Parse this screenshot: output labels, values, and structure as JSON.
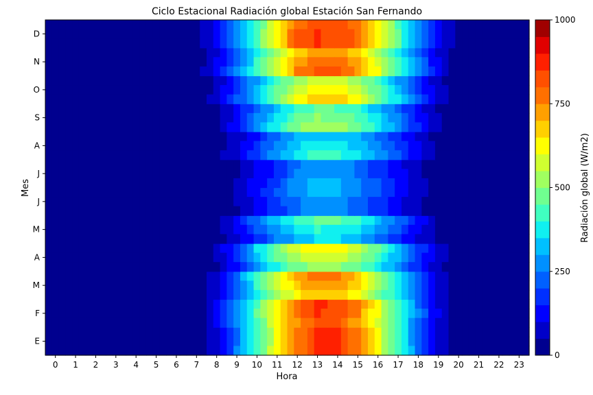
{
  "chart_data": {
    "type": "heatmap",
    "title": "Ciclo Estacional Radiación global Estación San Fernando",
    "xlabel": "Hora",
    "ylabel": "Mes",
    "x": [
      0,
      1,
      2,
      3,
      4,
      5,
      6,
      7,
      8,
      9,
      10,
      11,
      12,
      13,
      14,
      15,
      16,
      17,
      18,
      19,
      20,
      21,
      22,
      23
    ],
    "x_tick_labels": [
      "0",
      "1",
      "2",
      "3",
      "4",
      "5",
      "6",
      "7",
      "8",
      "9",
      "10",
      "11",
      "12",
      "13",
      "14",
      "15",
      "16",
      "17",
      "18",
      "19",
      "20",
      "21",
      "22",
      "23"
    ],
    "y_tick_labels": [
      "E",
      "F",
      "M",
      "A",
      "M",
      "J",
      "J",
      "A",
      "S",
      "O",
      "N",
      "D"
    ],
    "values": [
      [
        0,
        0,
        0,
        0,
        0,
        0,
        0,
        10,
        90,
        240,
        420,
        600,
        760,
        860,
        860,
        760,
        600,
        420,
        240,
        90,
        10,
        0,
        0,
        0
      ],
      [
        0,
        0,
        0,
        0,
        0,
        0,
        0,
        15,
        110,
        270,
        450,
        640,
        780,
        850,
        840,
        750,
        600,
        430,
        250,
        100,
        15,
        0,
        0,
        0
      ],
      [
        0,
        0,
        0,
        0,
        0,
        0,
        0,
        10,
        80,
        230,
        410,
        560,
        680,
        740,
        730,
        650,
        520,
        380,
        220,
        90,
        15,
        0,
        0,
        0
      ],
      [
        0,
        0,
        0,
        0,
        0,
        0,
        0,
        5,
        55,
        170,
        320,
        450,
        540,
        590,
        580,
        520,
        430,
        310,
        180,
        70,
        10,
        0,
        0,
        0
      ],
      [
        0,
        0,
        0,
        0,
        0,
        0,
        0,
        0,
        25,
        100,
        200,
        290,
        360,
        400,
        390,
        350,
        280,
        200,
        110,
        40,
        5,
        0,
        0,
        0
      ],
      [
        0,
        0,
        0,
        0,
        0,
        0,
        0,
        0,
        10,
        50,
        110,
        180,
        240,
        280,
        270,
        230,
        170,
        110,
        50,
        15,
        0,
        0,
        0,
        0
      ],
      [
        0,
        0,
        0,
        0,
        0,
        0,
        0,
        0,
        10,
        45,
        100,
        170,
        250,
        290,
        280,
        240,
        180,
        120,
        60,
        20,
        0,
        0,
        0,
        0
      ],
      [
        0,
        0,
        0,
        0,
        0,
        0,
        0,
        0,
        20,
        80,
        170,
        260,
        340,
        370,
        370,
        330,
        260,
        180,
        100,
        35,
        5,
        0,
        0,
        0
      ],
      [
        0,
        0,
        0,
        0,
        0,
        0,
        0,
        5,
        40,
        130,
        250,
        360,
        450,
        500,
        490,
        440,
        350,
        250,
        140,
        50,
        5,
        0,
        0,
        0
      ],
      [
        0,
        0,
        0,
        0,
        0,
        0,
        0,
        10,
        60,
        180,
        320,
        450,
        560,
        620,
        620,
        560,
        450,
        320,
        180,
        70,
        10,
        0,
        0,
        0
      ],
      [
        0,
        0,
        0,
        0,
        0,
        0,
        0,
        20,
        100,
        240,
        400,
        570,
        720,
        780,
        790,
        720,
        580,
        420,
        250,
        100,
        20,
        0,
        0,
        0
      ],
      [
        0,
        0,
        0,
        0,
        0,
        0,
        0,
        30,
        120,
        270,
        440,
        640,
        810,
        850,
        840,
        780,
        640,
        460,
        270,
        110,
        25,
        0,
        0,
        0
      ]
    ],
    "colorbar": {
      "label": "Radiación global (W/m2)",
      "ticks": [
        0,
        250,
        500,
        750,
        1000
      ],
      "levels": [
        0,
        50,
        100,
        150,
        200,
        250,
        300,
        350,
        400,
        450,
        500,
        550,
        600,
        650,
        700,
        750,
        800,
        850,
        900,
        950,
        1000
      ],
      "colors": [
        "#00008f",
        "#0000c8",
        "#0000ff",
        "#0030ff",
        "#0060ff",
        "#0090ff",
        "#00c0ff",
        "#10f0f0",
        "#40ffc0",
        "#70ff90",
        "#a0ff60",
        "#d0ff30",
        "#ffff00",
        "#ffd000",
        "#ffa000",
        "#ff7000",
        "#ff5000",
        "#ff2000",
        "#e00000",
        "#a00000"
      ]
    },
    "grid": false
  }
}
